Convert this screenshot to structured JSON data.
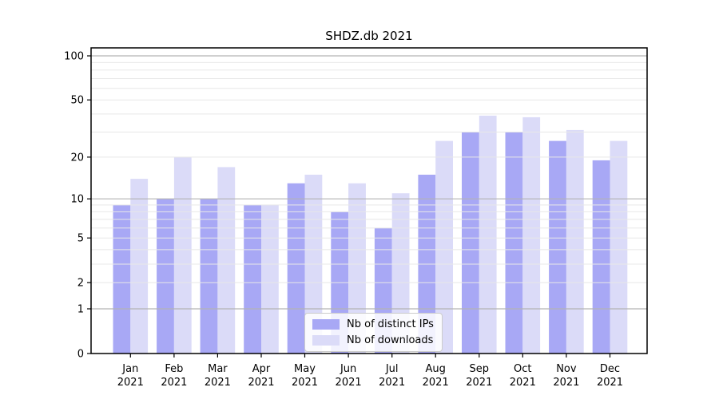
{
  "chart_data": {
    "type": "bar",
    "title": "SHDZ.db 2021",
    "categories": [
      "Jan",
      "Feb",
      "Mar",
      "Apr",
      "May",
      "Jun",
      "Jul",
      "Aug",
      "Sep",
      "Oct",
      "Nov",
      "Dec"
    ],
    "category_year": "2021",
    "series": [
      {
        "name": "Nb of distinct IPs",
        "color": "#a8a8f5",
        "values": [
          9,
          10,
          10,
          9,
          13,
          8,
          6,
          15,
          30,
          30,
          26,
          19
        ]
      },
      {
        "name": "Nb of downloads",
        "color": "#dbdbf8",
        "values": [
          14,
          20,
          17,
          9,
          15,
          13,
          11,
          26,
          39,
          38,
          31,
          26
        ]
      }
    ],
    "xlabel": "",
    "ylabel": "",
    "yscale": "log1p",
    "ylim": [
      0,
      113.3
    ],
    "yticks": [
      100,
      50,
      20,
      10,
      5,
      2,
      1,
      0
    ],
    "major_gridlines": [
      100,
      10,
      1
    ],
    "minor_gridlines": [
      2,
      3,
      4,
      5,
      6,
      7,
      8,
      9,
      20,
      30,
      40,
      50,
      60,
      70,
      80,
      90
    ],
    "grid_over_bars": true,
    "legend_position": "lower center",
    "colors": {
      "major_grid": "#b3b3b3",
      "minor_grid": "#e8e8e8",
      "axis": "#000000",
      "text": "#000000",
      "background": "#ffffff"
    }
  }
}
